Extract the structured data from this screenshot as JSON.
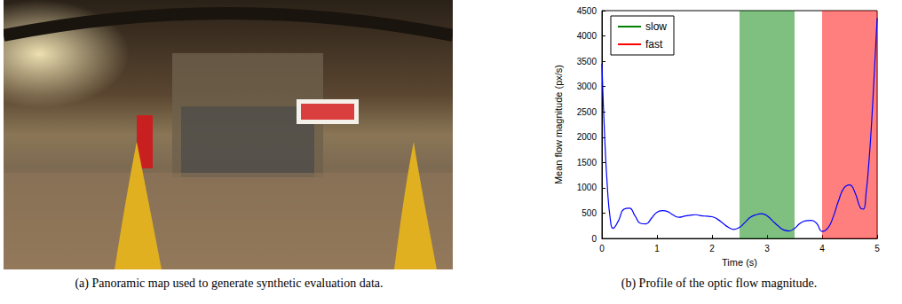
{
  "captions": [
    "(a) Panoramic map used to generate synthetic evaluation data.",
    "(b) Profile of the optic flow magnitude."
  ],
  "chart_data": {
    "type": "line",
    "x_label": "Time (s)",
    "y_label": "Mean flow magnitude (px/s)",
    "x": [
      0,
      0.05,
      0.1,
      0.15,
      0.2,
      0.3,
      0.4,
      0.5,
      0.6,
      0.7,
      0.8,
      0.9,
      1.0,
      1.1,
      1.2,
      1.3,
      1.4,
      1.5,
      1.6,
      1.7,
      1.8,
      1.9,
      2.0,
      2.1,
      2.2,
      2.3,
      2.4,
      2.5,
      2.6,
      2.7,
      2.8,
      2.9,
      3.0,
      3.1,
      3.2,
      3.3,
      3.4,
      3.5,
      3.6,
      3.7,
      3.8,
      3.9,
      4.0,
      4.1,
      4.2,
      4.3,
      4.4,
      4.5,
      4.6,
      4.7,
      4.75,
      4.8,
      4.85,
      4.9,
      4.95,
      5.0
    ],
    "series": [
      {
        "color": "#0000ff",
        "values": [
          3450,
          2000,
          1000,
          400,
          200,
          350,
          580,
          600,
          450,
          300,
          290,
          400,
          520,
          550,
          530,
          460,
          420,
          440,
          460,
          470,
          450,
          440,
          430,
          380,
          300,
          220,
          180,
          220,
          320,
          420,
          470,
          490,
          450,
          350,
          250,
          170,
          150,
          200,
          300,
          350,
          360,
          300,
          140,
          200,
          420,
          750,
          1000,
          1060,
          900,
          600,
          580,
          900,
          1500,
          2300,
          3300,
          4350
        ]
      }
    ],
    "regions": [
      {
        "name": "slow",
        "color": "#008000",
        "start": 2.5,
        "end": 3.5
      },
      {
        "name": "fast",
        "color": "#ff0000",
        "start": 4.0,
        "end": 5.0
      }
    ],
    "xlim": [
      0,
      5
    ],
    "xticks": [
      0,
      1,
      2,
      3,
      4,
      5
    ],
    "ylim": [
      0,
      4500
    ],
    "yticks": [
      0,
      500,
      1000,
      1500,
      2000,
      2500,
      3000,
      3500,
      4000,
      4500
    ],
    "legend": "upper left",
    "grid": false
  }
}
